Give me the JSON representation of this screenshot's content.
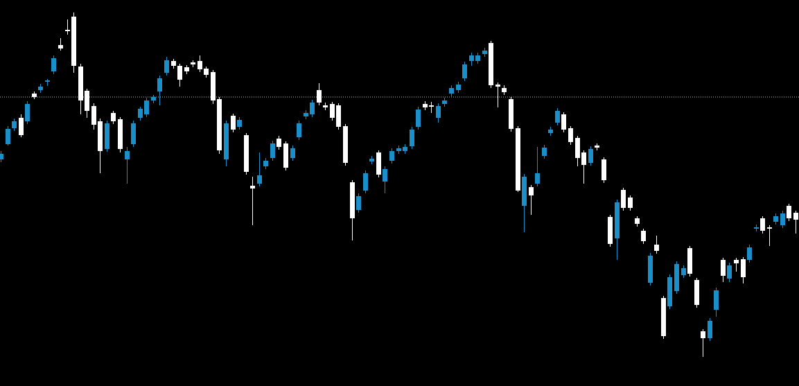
{
  "chart_data": {
    "type": "candlestick",
    "background": "#000000",
    "up_color": "#1a8fc9",
    "down_color": "#ffffff",
    "price_line": 417,
    "price_line_color": "#c8c8c8",
    "ylim": [
      0,
      557
    ],
    "open": [
      327,
      349,
      372,
      387,
      382,
      422,
      427,
      439,
      454,
      492,
      514,
      533,
      461,
      426,
      404,
      382,
      342,
      394,
      385,
      327,
      349,
      387,
      392,
      412,
      425,
      452,
      469,
      462,
      460,
      467,
      469,
      458,
      453,
      414,
      327,
      390,
      374,
      362,
      289,
      292,
      317,
      329,
      357,
      350,
      329,
      359,
      389,
      392,
      427,
      405,
      407,
      405,
      375,
      294,
      254,
      282,
      324,
      337,
      295,
      325,
      339,
      339,
      346,
      374,
      407,
      405,
      387,
      407,
      422,
      427,
      444,
      469,
      469,
      479,
      495,
      435,
      430,
      414,
      372,
      260,
      287,
      292,
      332,
      365,
      380,
      392,
      372,
      358,
      337,
      322,
      347,
      327,
      244,
      213,
      283,
      272,
      242,
      224,
      149,
      204,
      127,
      115,
      137,
      160,
      199,
      153,
      79,
      69,
      110,
      182,
      155,
      182,
      183,
      182,
      227,
      242,
      229,
      237,
      232,
      260,
      250
    ],
    "high": [
      339,
      375,
      386,
      392,
      411,
      425,
      436,
      443,
      477,
      502,
      529,
      539,
      465,
      429,
      408,
      386,
      383,
      397,
      388,
      345,
      383,
      403,
      416,
      420,
      448,
      475,
      472,
      465,
      463,
      470,
      477,
      461,
      456,
      417,
      383,
      393,
      388,
      365,
      302,
      337,
      329,
      354,
      361,
      353,
      347,
      383,
      398,
      413,
      437,
      409,
      410,
      408,
      378,
      297,
      278,
      311,
      332,
      340,
      317,
      343,
      347,
      349,
      374,
      403,
      411,
      410,
      408,
      416,
      434,
      439,
      468,
      481,
      481,
      488,
      498,
      438,
      434,
      417,
      375,
      306,
      290,
      345,
      348,
      374,
      401,
      395,
      375,
      361,
      340,
      346,
      350,
      330,
      247,
      269,
      286,
      275,
      245,
      227,
      192,
      217,
      130,
      161,
      180,
      174,
      202,
      156,
      82,
      98,
      142,
      185,
      178,
      185,
      186,
      204,
      233,
      245,
      232,
      249,
      253,
      263,
      253
    ],
    "low": [
      323,
      347,
      368,
      359,
      378,
      414,
      423,
      433,
      450,
      484,
      507,
      452,
      392,
      387,
      370,
      307,
      338,
      378,
      337,
      292,
      345,
      383,
      388,
      408,
      405,
      448,
      458,
      432,
      450,
      460,
      453,
      445,
      407,
      335,
      317,
      366,
      370,
      305,
      232,
      288,
      313,
      325,
      341,
      311,
      325,
      355,
      385,
      388,
      405,
      398,
      383,
      370,
      318,
      210,
      250,
      278,
      320,
      301,
      278,
      321,
      335,
      335,
      342,
      370,
      398,
      394,
      380,
      403,
      418,
      423,
      440,
      462,
      465,
      475,
      430,
      402,
      420,
      367,
      280,
      222,
      247,
      288,
      328,
      361,
      376,
      366,
      348,
      317,
      292,
      318,
      340,
      293,
      201,
      182,
      253,
      253,
      230,
      205,
      145,
      191,
      68,
      111,
      133,
      156,
      158,
      113,
      42,
      65,
      100,
      150,
      150,
      165,
      148,
      178,
      223,
      220,
      202,
      233,
      228,
      238,
      220
    ],
    "close": [
      335,
      371,
      382,
      362,
      407,
      417,
      432,
      441,
      473,
      487,
      512,
      462,
      412,
      397,
      377,
      339,
      379,
      382,
      342,
      339,
      379,
      400,
      412,
      417,
      444,
      470,
      462,
      442,
      454,
      464,
      457,
      449,
      412,
      340,
      379,
      370,
      384,
      309,
      285,
      304,
      325,
      350,
      345,
      315,
      343,
      379,
      394,
      409,
      409,
      402,
      387,
      374,
      322,
      242,
      274,
      307,
      328,
      305,
      313,
      339,
      343,
      345,
      370,
      399,
      402,
      403,
      404,
      412,
      430,
      435,
      464,
      477,
      477,
      484,
      434,
      432,
      424,
      371,
      282,
      302,
      275,
      307,
      344,
      370,
      397,
      370,
      352,
      329,
      319,
      342,
      344,
      297,
      205,
      265,
      257,
      257,
      234,
      209,
      188,
      195,
      72,
      157,
      176,
      170,
      162,
      117,
      69,
      94,
      138,
      159,
      174,
      177,
      157,
      200,
      229,
      224,
      227,
      245,
      249,
      242,
      240
    ]
  }
}
